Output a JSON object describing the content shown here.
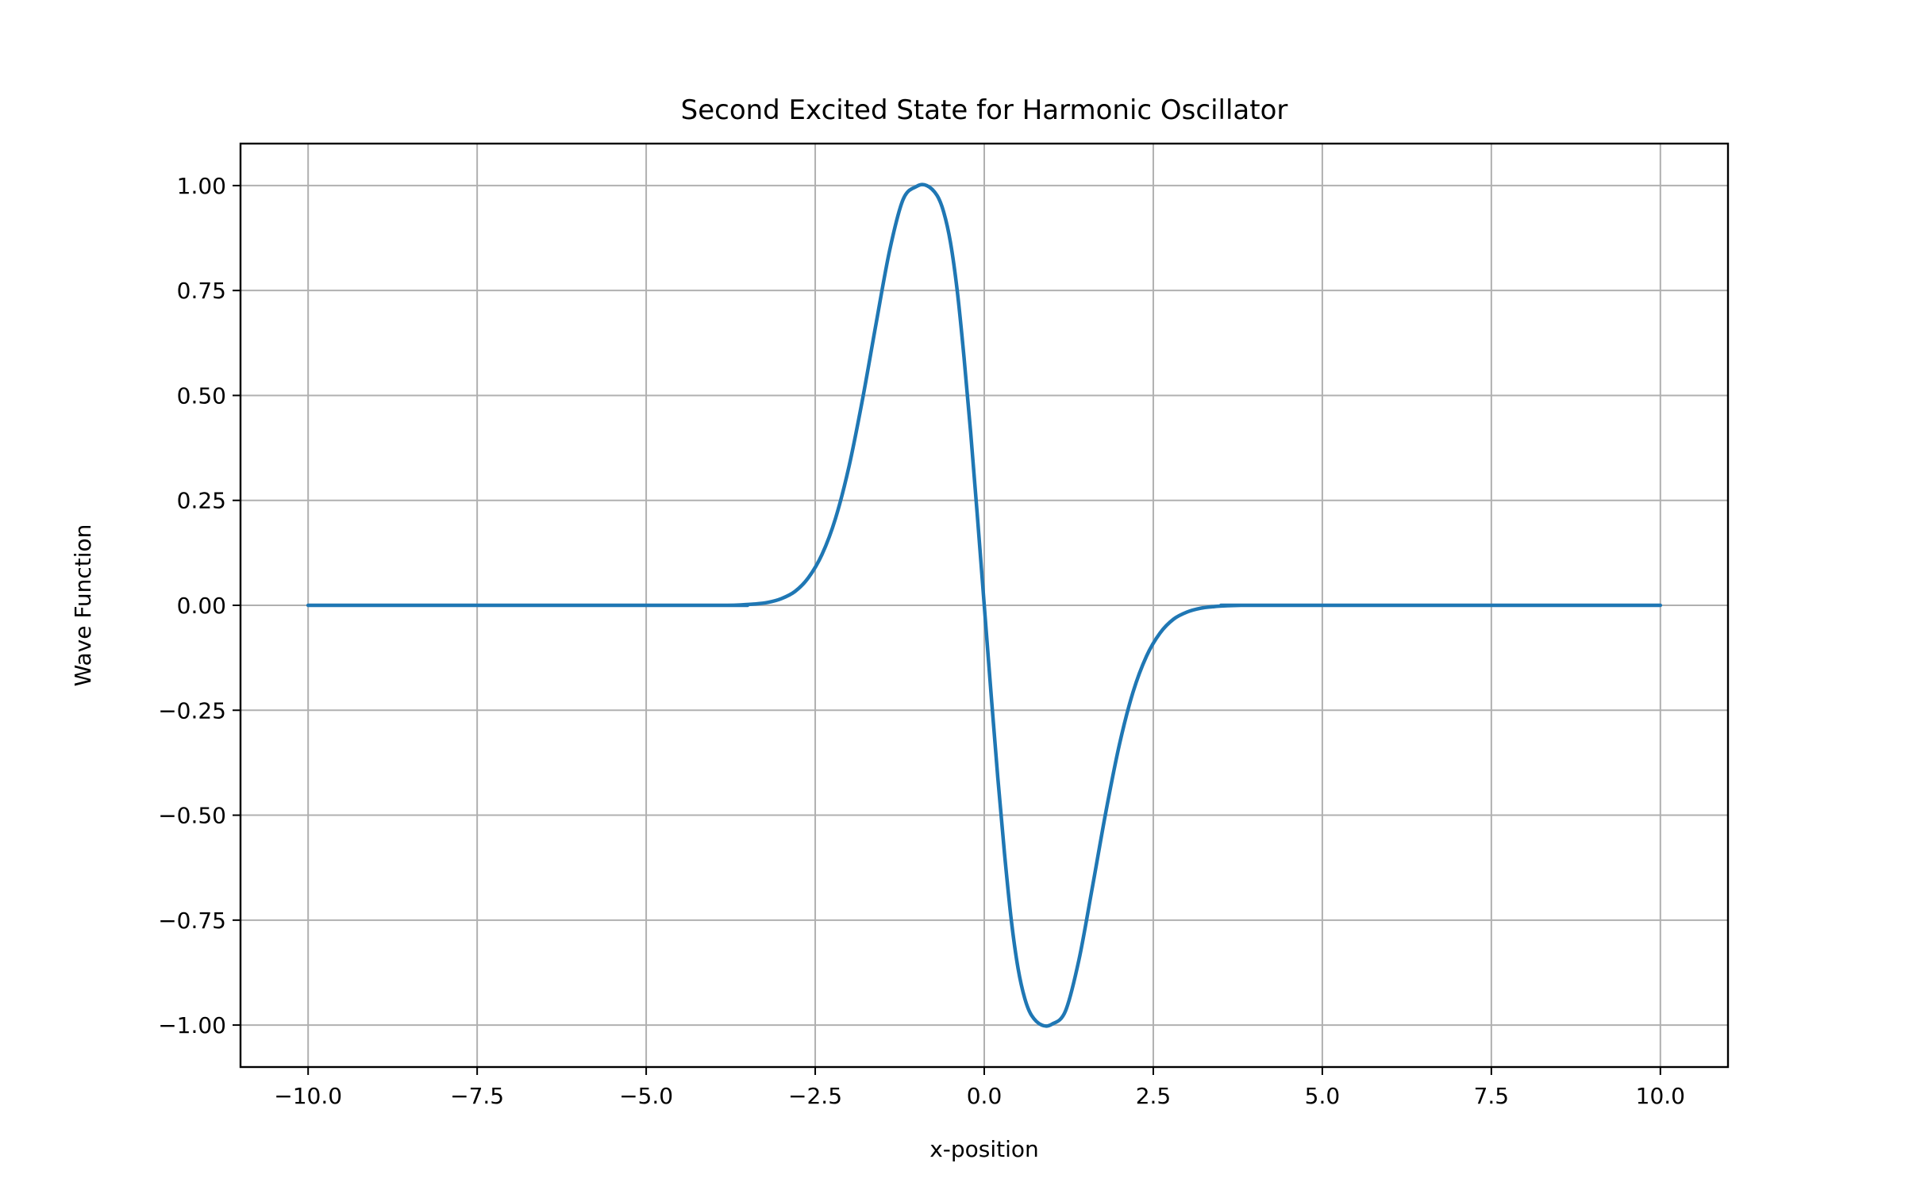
{
  "chart_data": {
    "type": "line",
    "title": "Second Excited State for Harmonic Oscillator",
    "xlabel": "x-position",
    "ylabel": "Wave Function",
    "xlim": [
      -11.0,
      11.0
    ],
    "ylim": [
      -1.1,
      1.1
    ],
    "x_ticks": [
      -10.0,
      -7.5,
      -5.0,
      -2.5,
      0.0,
      2.5,
      5.0,
      7.5,
      10.0
    ],
    "x_tick_labels": [
      "−10.0",
      "−7.5",
      "−5.0",
      "−2.5",
      "0.0",
      "2.5",
      "5.0",
      "7.5",
      "10.0"
    ],
    "y_ticks": [
      1.0,
      0.75,
      0.5,
      0.25,
      0.0,
      -0.25,
      -0.5,
      -0.75,
      -1.0
    ],
    "y_tick_labels": [
      "1.00",
      "0.75",
      "0.50",
      "0.25",
      "0.00",
      "−0.25",
      "−0.50",
      "−0.75",
      "−1.00"
    ],
    "grid": true,
    "series": [
      {
        "color": "#1f77b4",
        "x": [
          -10.0,
          -4.0,
          -3.8,
          -3.6,
          -3.4,
          -3.2,
          -3.0,
          -2.8,
          -2.6,
          -2.4,
          -2.2,
          -2.0,
          -1.8,
          -1.6,
          -1.4,
          -1.2,
          -1.0,
          -0.85,
          -0.7,
          -0.6,
          -0.5,
          -0.4,
          -0.3,
          -0.2,
          -0.1,
          0.0,
          0.1,
          0.2,
          0.3,
          0.4,
          0.5,
          0.6,
          0.7,
          0.85,
          1.0,
          1.2,
          1.4,
          1.6,
          1.8,
          2.0,
          2.2,
          2.4,
          2.6,
          2.8,
          3.0,
          3.2,
          3.4,
          3.6,
          3.8,
          4.0,
          10.0
        ],
        "y": [
          0.0,
          0.0,
          0.0,
          0.001,
          0.003,
          0.007,
          0.016,
          0.033,
          0.066,
          0.121,
          0.207,
          0.331,
          0.491,
          0.671,
          0.845,
          0.967,
          0.998,
          1.0,
          0.977,
          0.937,
          0.865,
          0.75,
          0.592,
          0.41,
          0.209,
          0.0,
          -0.209,
          -0.41,
          -0.592,
          -0.75,
          -0.865,
          -0.937,
          -0.977,
          -1.0,
          -0.998,
          -0.967,
          -0.845,
          -0.671,
          -0.491,
          -0.331,
          -0.207,
          -0.121,
          -0.066,
          -0.033,
          -0.016,
          -0.007,
          -0.003,
          -0.001,
          0.0,
          0.0,
          0.0
        ]
      }
    ]
  }
}
